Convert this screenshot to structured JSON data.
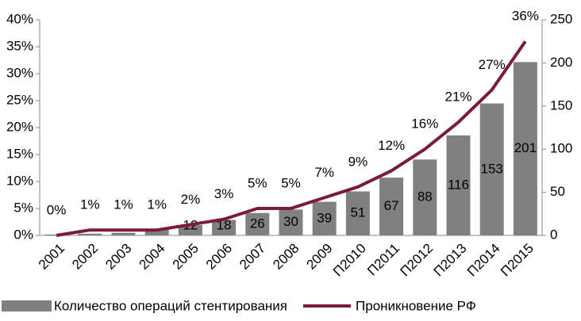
{
  "chart_data": {
    "type": "bar_line",
    "categories": [
      "2001",
      "2002",
      "2003",
      "2004",
      "2005",
      "2006",
      "2007",
      "2008",
      "2009",
      "П2010",
      "П2011",
      "П2012",
      "П2013",
      "П2014",
      "П2015"
    ],
    "series": [
      {
        "name": "Количество операций стентирования",
        "type": "bar",
        "axis": "y2",
        "color": "#808080",
        "values": [
          1,
          2,
          3,
          7,
          12,
          18,
          26,
          30,
          39,
          51,
          67,
          88,
          116,
          153,
          201
        ],
        "value_labels": [
          null,
          null,
          null,
          null,
          "12",
          "18",
          "26",
          "30",
          "39",
          "51",
          "67",
          "88",
          "116",
          "153",
          "201"
        ]
      },
      {
        "name": "Проникновение РФ",
        "type": "line",
        "axis": "y",
        "color": "#7b1c33",
        "values": [
          0,
          1,
          1,
          1,
          2,
          3,
          5,
          5,
          7,
          9,
          12,
          16,
          21,
          27,
          36
        ],
        "value_labels": [
          "0%",
          "1%",
          "1%",
          "1%",
          "2%",
          "3%",
          "5%",
          "5%",
          "7%",
          "9%",
          "12%",
          "16%",
          "21%",
          "27%",
          "36%"
        ]
      }
    ],
    "ylim": [
      0,
      40
    ],
    "yticks": [
      {
        "value": 0,
        "label": "0%"
      },
      {
        "value": 5,
        "label": "5%"
      },
      {
        "value": 10,
        "label": "10%"
      },
      {
        "value": 15,
        "label": "15%"
      },
      {
        "value": 20,
        "label": "20%"
      },
      {
        "value": 25,
        "label": "25%"
      },
      {
        "value": 30,
        "label": "30%"
      },
      {
        "value": 35,
        "label": "35%"
      },
      {
        "value": 40,
        "label": "40%"
      }
    ],
    "y2lim": [
      0,
      250
    ],
    "y2ticks": [
      0,
      50,
      100,
      150,
      200,
      250
    ]
  }
}
